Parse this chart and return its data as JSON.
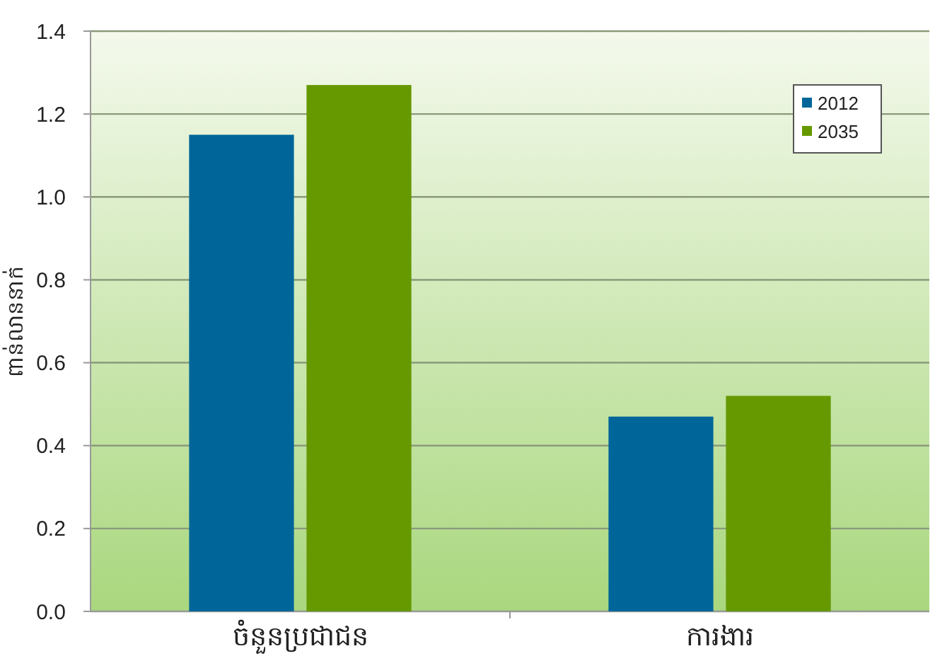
{
  "chart_data": {
    "type": "bar",
    "ylabel": "ពាន់លាននាក់",
    "categories": [
      "ចំនួនប្រជាជន",
      "ការងារ"
    ],
    "series": [
      {
        "name": "2012",
        "color": "#006699",
        "values": [
          1.15,
          0.47
        ]
      },
      {
        "name": "2035",
        "color": "#669900",
        "values": [
          1.27,
          0.52
        ]
      }
    ],
    "ylim": [
      0,
      1.4
    ],
    "yticks": [
      {
        "value": 0,
        "label": "0.0"
      },
      {
        "value": 0.2,
        "label": "0.2"
      },
      {
        "value": 0.4,
        "label": "0.4"
      },
      {
        "value": 0.6,
        "label": "0.6"
      },
      {
        "value": 0.8,
        "label": "0.8"
      },
      {
        "value": 1,
        "label": "1.0"
      },
      {
        "value": 1.2,
        "label": "1.2"
      },
      {
        "value": 1.4,
        "label": "1.4"
      }
    ],
    "grid": "y",
    "legend": "top right"
  }
}
